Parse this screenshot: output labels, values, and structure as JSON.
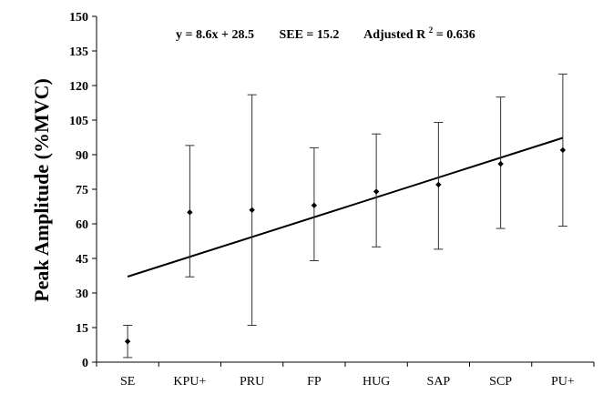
{
  "chart_data": {
    "type": "scatter",
    "ylabel": "Peak Amplitude (%MVC)",
    "xlabel": "",
    "ylim": [
      0,
      150
    ],
    "yticks": [
      0,
      15,
      30,
      45,
      60,
      75,
      90,
      105,
      120,
      135,
      150
    ],
    "categories": [
      "SE",
      "KPU+",
      "PRU",
      "FP",
      "HUG",
      "SAP",
      "SCP",
      "PU+"
    ],
    "series": [
      {
        "values": [
          9,
          65,
          66,
          68,
          74,
          77,
          86,
          92
        ],
        "error_low": [
          2,
          37,
          16,
          44,
          50,
          49,
          58,
          59
        ],
        "error_high": [
          16,
          94,
          116,
          93,
          99,
          104,
          115,
          125
        ]
      }
    ],
    "regression": {
      "slope": 8.6,
      "intercept": 28.5
    },
    "annotations": {
      "equation": "y = 8.6x + 28.5",
      "see": "SEE = 15.2",
      "r2_prefix": "Adjusted R",
      "r2_sup": "2",
      "r2_suffix": " = 0.636"
    },
    "grid": false,
    "legend": "none"
  }
}
